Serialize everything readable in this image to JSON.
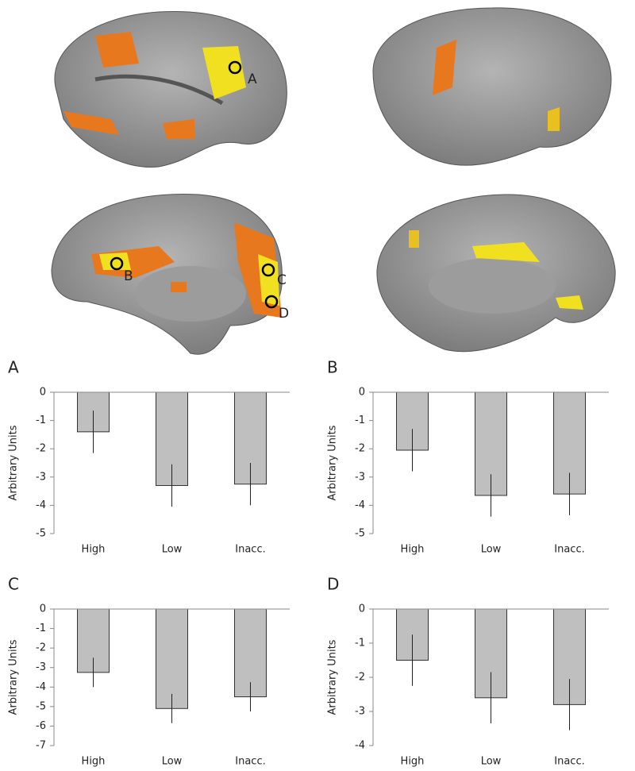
{
  "brain_labels": [
    "A",
    "B",
    "C",
    "D"
  ],
  "chart_data": [
    {
      "type": "bar",
      "panel": "A",
      "ylabel": "Arbitrary Units",
      "categories": [
        "High",
        "Low",
        "Inacc."
      ],
      "values": [
        -1.4,
        -3.3,
        -3.25
      ],
      "errors": [
        0.75,
        0.75,
        0.75
      ],
      "color": "#bfbfbf",
      "ylim": [
        -5,
        0
      ],
      "yticks": [
        0,
        -1,
        -2,
        -3,
        -4,
        -5
      ]
    },
    {
      "type": "bar",
      "panel": "B",
      "ylabel": "Arbitrary Units",
      "categories": [
        "High",
        "Low",
        "Inacc."
      ],
      "values": [
        -2.05,
        -3.65,
        -3.6
      ],
      "errors": [
        0.75,
        0.75,
        0.75
      ],
      "color": "#bfbfbf",
      "ylim": [
        -5,
        0
      ],
      "yticks": [
        0,
        -1,
        -2,
        -3,
        -4,
        -5
      ]
    },
    {
      "type": "bar",
      "panel": "C",
      "ylabel": "Arbitrary Units",
      "categories": [
        "High",
        "Low",
        "Inacc."
      ],
      "values": [
        -3.25,
        -5.1,
        -4.5
      ],
      "errors": [
        0.75,
        0.75,
        0.75
      ],
      "color": "#bfbfbf",
      "ylim": [
        -7,
        0
      ],
      "yticks": [
        0,
        -1,
        -2,
        -3,
        -4,
        -5,
        -6,
        -7
      ]
    },
    {
      "type": "bar",
      "panel": "D",
      "ylabel": "Arbitrary Units",
      "categories": [
        "High",
        "Low",
        "Inacc."
      ],
      "values": [
        -1.5,
        -2.6,
        -2.8
      ],
      "errors": [
        0.75,
        0.75,
        0.75
      ],
      "color": "#bfbfbf",
      "ylim": [
        -4,
        0
      ],
      "yticks": [
        0,
        -1,
        -2,
        -3,
        -4
      ]
    }
  ]
}
